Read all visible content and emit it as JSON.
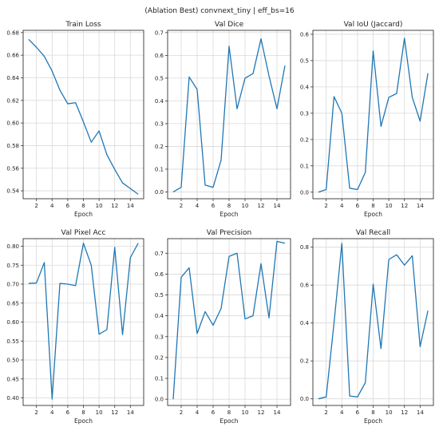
{
  "figure": {
    "suptitle": "(Ablation Best) convnext_tiny | eff_bs=16"
  },
  "colors": {
    "line": "#1f77b4",
    "grid": "#d9d9d9",
    "axis": "#333333"
  },
  "chart_data": [
    {
      "type": "line",
      "title": "Train Loss",
      "xlabel": "Epoch",
      "ylabel": "",
      "grid": true,
      "x": [
        1,
        2,
        3,
        4,
        5,
        6,
        7,
        8,
        9,
        10,
        11,
        12,
        13,
        14,
        15
      ],
      "xlim": [
        0.3,
        15.7
      ],
      "xticks": [
        2,
        4,
        6,
        8,
        10,
        12,
        14
      ],
      "ylim": [
        0.533,
        0.682
      ],
      "yticks": [
        0.54,
        0.56,
        0.58,
        0.6,
        0.62,
        0.64,
        0.66,
        0.68
      ],
      "ytick_labels": [
        "0.54",
        "0.56",
        "0.58",
        "0.60",
        "0.62",
        "0.64",
        "0.66",
        "0.68"
      ],
      "values": [
        0.674,
        0.667,
        0.659,
        0.646,
        0.629,
        0.617,
        0.618,
        0.601,
        0.583,
        0.593,
        0.572,
        0.559,
        0.547,
        0.542,
        0.537
      ]
    },
    {
      "type": "line",
      "title": "Val Dice",
      "xlabel": "Epoch",
      "ylabel": "",
      "grid": true,
      "x": [
        1,
        2,
        3,
        4,
        5,
        6,
        7,
        8,
        9,
        10,
        11,
        12,
        13,
        14,
        15
      ],
      "xlim": [
        0.3,
        15.7
      ],
      "xticks": [
        2,
        4,
        6,
        8,
        10,
        12,
        14
      ],
      "ylim": [
        -0.03,
        0.71
      ],
      "yticks": [
        0.0,
        0.1,
        0.2,
        0.3,
        0.4,
        0.5,
        0.6,
        0.7
      ],
      "ytick_labels": [
        "0.0",
        "0.1",
        "0.2",
        "0.3",
        "0.4",
        "0.5",
        "0.6",
        "0.7"
      ],
      "values": [
        0.0,
        0.02,
        0.505,
        0.45,
        0.03,
        0.02,
        0.14,
        0.64,
        0.365,
        0.5,
        0.52,
        0.673,
        0.51,
        0.365,
        0.555
      ]
    },
    {
      "type": "line",
      "title": "Val IoU (Jaccard)",
      "xlabel": "Epoch",
      "ylabel": "",
      "grid": true,
      "x": [
        1,
        2,
        3,
        4,
        5,
        6,
        7,
        8,
        9,
        10,
        11,
        12,
        13,
        14,
        15
      ],
      "xlim": [
        0.3,
        15.7
      ],
      "xticks": [
        2,
        4,
        6,
        8,
        10,
        12,
        14
      ],
      "ylim": [
        -0.025,
        0.615
      ],
      "yticks": [
        0.0,
        0.1,
        0.2,
        0.3,
        0.4,
        0.5,
        0.6
      ],
      "ytick_labels": [
        "0.0",
        "0.1",
        "0.2",
        "0.3",
        "0.4",
        "0.5",
        "0.6"
      ],
      "values": [
        0.0,
        0.01,
        0.363,
        0.3,
        0.015,
        0.01,
        0.075,
        0.537,
        0.25,
        0.36,
        0.375,
        0.585,
        0.36,
        0.27,
        0.452
      ]
    },
    {
      "type": "line",
      "title": "Val Pixel Acc",
      "xlabel": "Epoch",
      "ylabel": "",
      "grid": true,
      "x": [
        1,
        2,
        3,
        4,
        5,
        6,
        7,
        8,
        9,
        10,
        11,
        12,
        13,
        14,
        15
      ],
      "xlim": [
        0.3,
        15.7
      ],
      "xticks": [
        2,
        4,
        6,
        8,
        10,
        12,
        14
      ],
      "ylim": [
        0.38,
        0.82
      ],
      "yticks": [
        0.4,
        0.45,
        0.5,
        0.55,
        0.6,
        0.65,
        0.7,
        0.75,
        0.8
      ],
      "ytick_labels": [
        "0.40",
        "0.45",
        "0.50",
        "0.55",
        "0.60",
        "0.65",
        "0.70",
        "0.75",
        "0.80"
      ],
      "values": [
        0.702,
        0.703,
        0.757,
        0.397,
        0.702,
        0.7,
        0.696,
        0.808,
        0.75,
        0.568,
        0.58,
        0.797,
        0.567,
        0.77,
        0.808
      ]
    },
    {
      "type": "line",
      "title": "Val Precision",
      "xlabel": "Epoch",
      "ylabel": "",
      "grid": true,
      "x": [
        1,
        2,
        3,
        4,
        5,
        6,
        7,
        8,
        9,
        10,
        11,
        12,
        13,
        14,
        15
      ],
      "xlim": [
        0.3,
        15.7
      ],
      "xticks": [
        2,
        4,
        6,
        8,
        10,
        12,
        14
      ],
      "ylim": [
        -0.03,
        0.77
      ],
      "yticks": [
        0.0,
        0.1,
        0.2,
        0.3,
        0.4,
        0.5,
        0.6,
        0.7
      ],
      "ytick_labels": [
        "0.0",
        "0.1",
        "0.2",
        "0.3",
        "0.4",
        "0.5",
        "0.6",
        "0.7"
      ],
      "values": [
        0.0,
        0.585,
        0.63,
        0.315,
        0.42,
        0.355,
        0.435,
        0.685,
        0.7,
        0.385,
        0.4,
        0.65,
        0.39,
        0.757,
        0.748
      ]
    },
    {
      "type": "line",
      "title": "Val Recall",
      "xlabel": "Epoch",
      "ylabel": "",
      "grid": true,
      "x": [
        1,
        2,
        3,
        4,
        5,
        6,
        7,
        8,
        9,
        10,
        11,
        12,
        13,
        14,
        15
      ],
      "xlim": [
        0.3,
        15.7
      ],
      "xticks": [
        2,
        4,
        6,
        8,
        10,
        12,
        14
      ],
      "ylim": [
        -0.035,
        0.845
      ],
      "yticks": [
        0.0,
        0.2,
        0.4,
        0.6,
        0.8
      ],
      "ytick_labels": [
        "0.0",
        "0.2",
        "0.4",
        "0.6",
        "0.8"
      ],
      "values": [
        0.0,
        0.01,
        0.4,
        0.82,
        0.015,
        0.01,
        0.085,
        0.605,
        0.265,
        0.735,
        0.76,
        0.705,
        0.755,
        0.275,
        0.465
      ]
    }
  ]
}
